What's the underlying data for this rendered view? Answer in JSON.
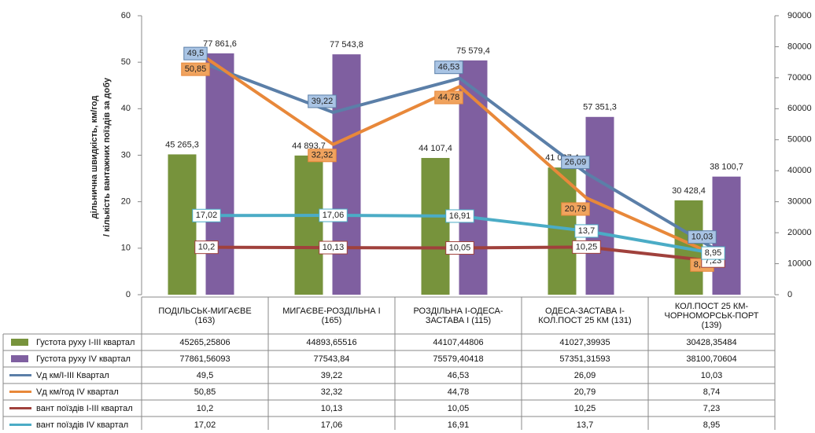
{
  "chart_data": {
    "type": "bar-line-combo",
    "y_label": [
      "дільнична швидкість, км/год",
      "/ кількість  вантажних поїздів за добу"
    ],
    "categories": [
      "ПОДІЛЬСЬК-МИГАЄВЕ\n(163)",
      "МИГАЄВЕ-РОЗДІЛЬНА I\n(165)",
      "РОЗДІЛЬНА I-ОДЕСА-\nЗАСТАВА I (115)",
      "ОДЕСА-ЗАСТАВА I-\nКОЛ.ПОСТ 25 КМ (131)",
      "КОЛ.ПОСТ 25 КМ-\nЧОРНОМОРСЬК-ПОРТ\n(139)"
    ],
    "ylim": [
      0,
      60
    ],
    "yticks": [
      0,
      10,
      20,
      30,
      40,
      50,
      60
    ],
    "y2lim": [
      0,
      90000
    ],
    "y2ticks": [
      0,
      10000,
      20000,
      30000,
      40000,
      50000,
      60000,
      70000,
      80000,
      90000
    ],
    "series": [
      {
        "name": "Густота руху I-III квартал",
        "kind": "bar",
        "axis": "y2",
        "color": "#77933c",
        "values": [
          45265.25806,
          44893.65516,
          44107.44806,
          41027.39935,
          30428.35484
        ],
        "value_labels": [
          "45 265,3",
          "44 893,7",
          "44 107,4",
          "41 027,4",
          "30 428,4"
        ],
        "table_labels": [
          "45265,25806",
          "44893,65516",
          "44107,44806",
          "41027,39935",
          "30428,35484"
        ]
      },
      {
        "name": "Густота руху IV квартал",
        "kind": "bar",
        "axis": "y2",
        "color": "#7f5fa0",
        "values": [
          77861.56093,
          77543.84,
          75579.40418,
          57351.31593,
          38100.70604
        ],
        "value_labels": [
          "77 861,6",
          "77 543,8",
          "75 579,4",
          "57 351,3",
          "38 100,7"
        ],
        "table_labels": [
          "77861,56093",
          "77543,84",
          "75579,40418",
          "57351,31593",
          "38100,70604"
        ]
      },
      {
        "name": "Vд км/I-III Квартал",
        "kind": "line",
        "color": "#5b7fa8",
        "values": [
          49.5,
          39.22,
          46.53,
          26.09,
          10.03
        ],
        "value_labels": [
          "49,5",
          "39,22",
          "46,53",
          "26,09",
          "10,03"
        ]
      },
      {
        "name": "Vд км/год IV квартал",
        "kind": "line",
        "color": "#e8883a",
        "values": [
          50.85,
          32.32,
          44.78,
          20.79,
          8.74
        ],
        "value_labels": [
          "50,85",
          "32,32",
          "44,78",
          "20,79",
          "8,74"
        ]
      },
      {
        "name": "вант поїздів I-III квартал",
        "kind": "line",
        "color": "#a0413c",
        "values": [
          10.2,
          10.13,
          10.05,
          10.25,
          7.23
        ],
        "value_labels": [
          "10,2",
          "10,13",
          "10,05",
          "10,25",
          "7,23"
        ]
      },
      {
        "name": "вант поїздів IV квартал",
        "kind": "line",
        "color": "#4bacc6",
        "values": [
          17.02,
          17.06,
          16.91,
          13.7,
          8.95
        ],
        "value_labels": [
          "17,02",
          "17,06",
          "16,91",
          "13,7",
          "8,95"
        ]
      }
    ]
  }
}
